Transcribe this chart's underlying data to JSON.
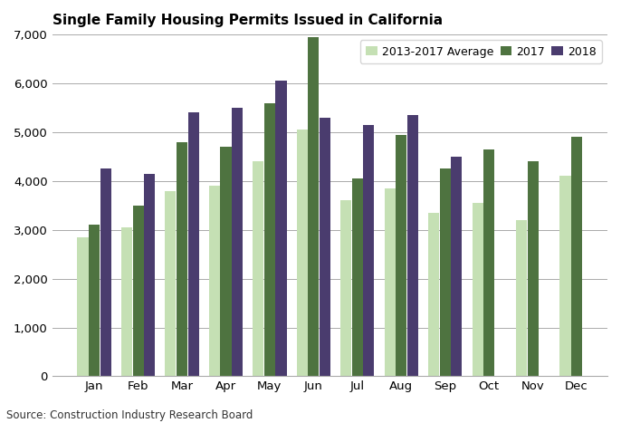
{
  "title": "Single Family Housing Permits Issued in California",
  "source": "Source: Construction Industry Research Board",
  "months": [
    "Jan",
    "Feb",
    "Mar",
    "Apr",
    "May",
    "Jun",
    "Jul",
    "Aug",
    "Sep",
    "Oct",
    "Nov",
    "Dec"
  ],
  "avg_2013_2017": [
    2850,
    3050,
    3800,
    3900,
    4400,
    5050,
    3600,
    3850,
    3350,
    3550,
    3200,
    4100
  ],
  "data_2017": [
    3100,
    3500,
    4800,
    4700,
    5600,
    6950,
    4050,
    4950,
    4250,
    4650,
    4400,
    4900
  ],
  "data_2018": [
    4250,
    4150,
    5400,
    5500,
    6050,
    5300,
    5150,
    5350,
    4500,
    null,
    null,
    null
  ],
  "color_avg": "#c5e0b4",
  "color_2017": "#4e7340",
  "color_2018": "#4a3c6e",
  "legend_labels": [
    "2013-2017 Average",
    "2017",
    "2018"
  ],
  "ylim": [
    0,
    7000
  ],
  "yticks": [
    0,
    1000,
    2000,
    3000,
    4000,
    5000,
    6000,
    7000
  ],
  "ylabel": "",
  "xlabel": ""
}
